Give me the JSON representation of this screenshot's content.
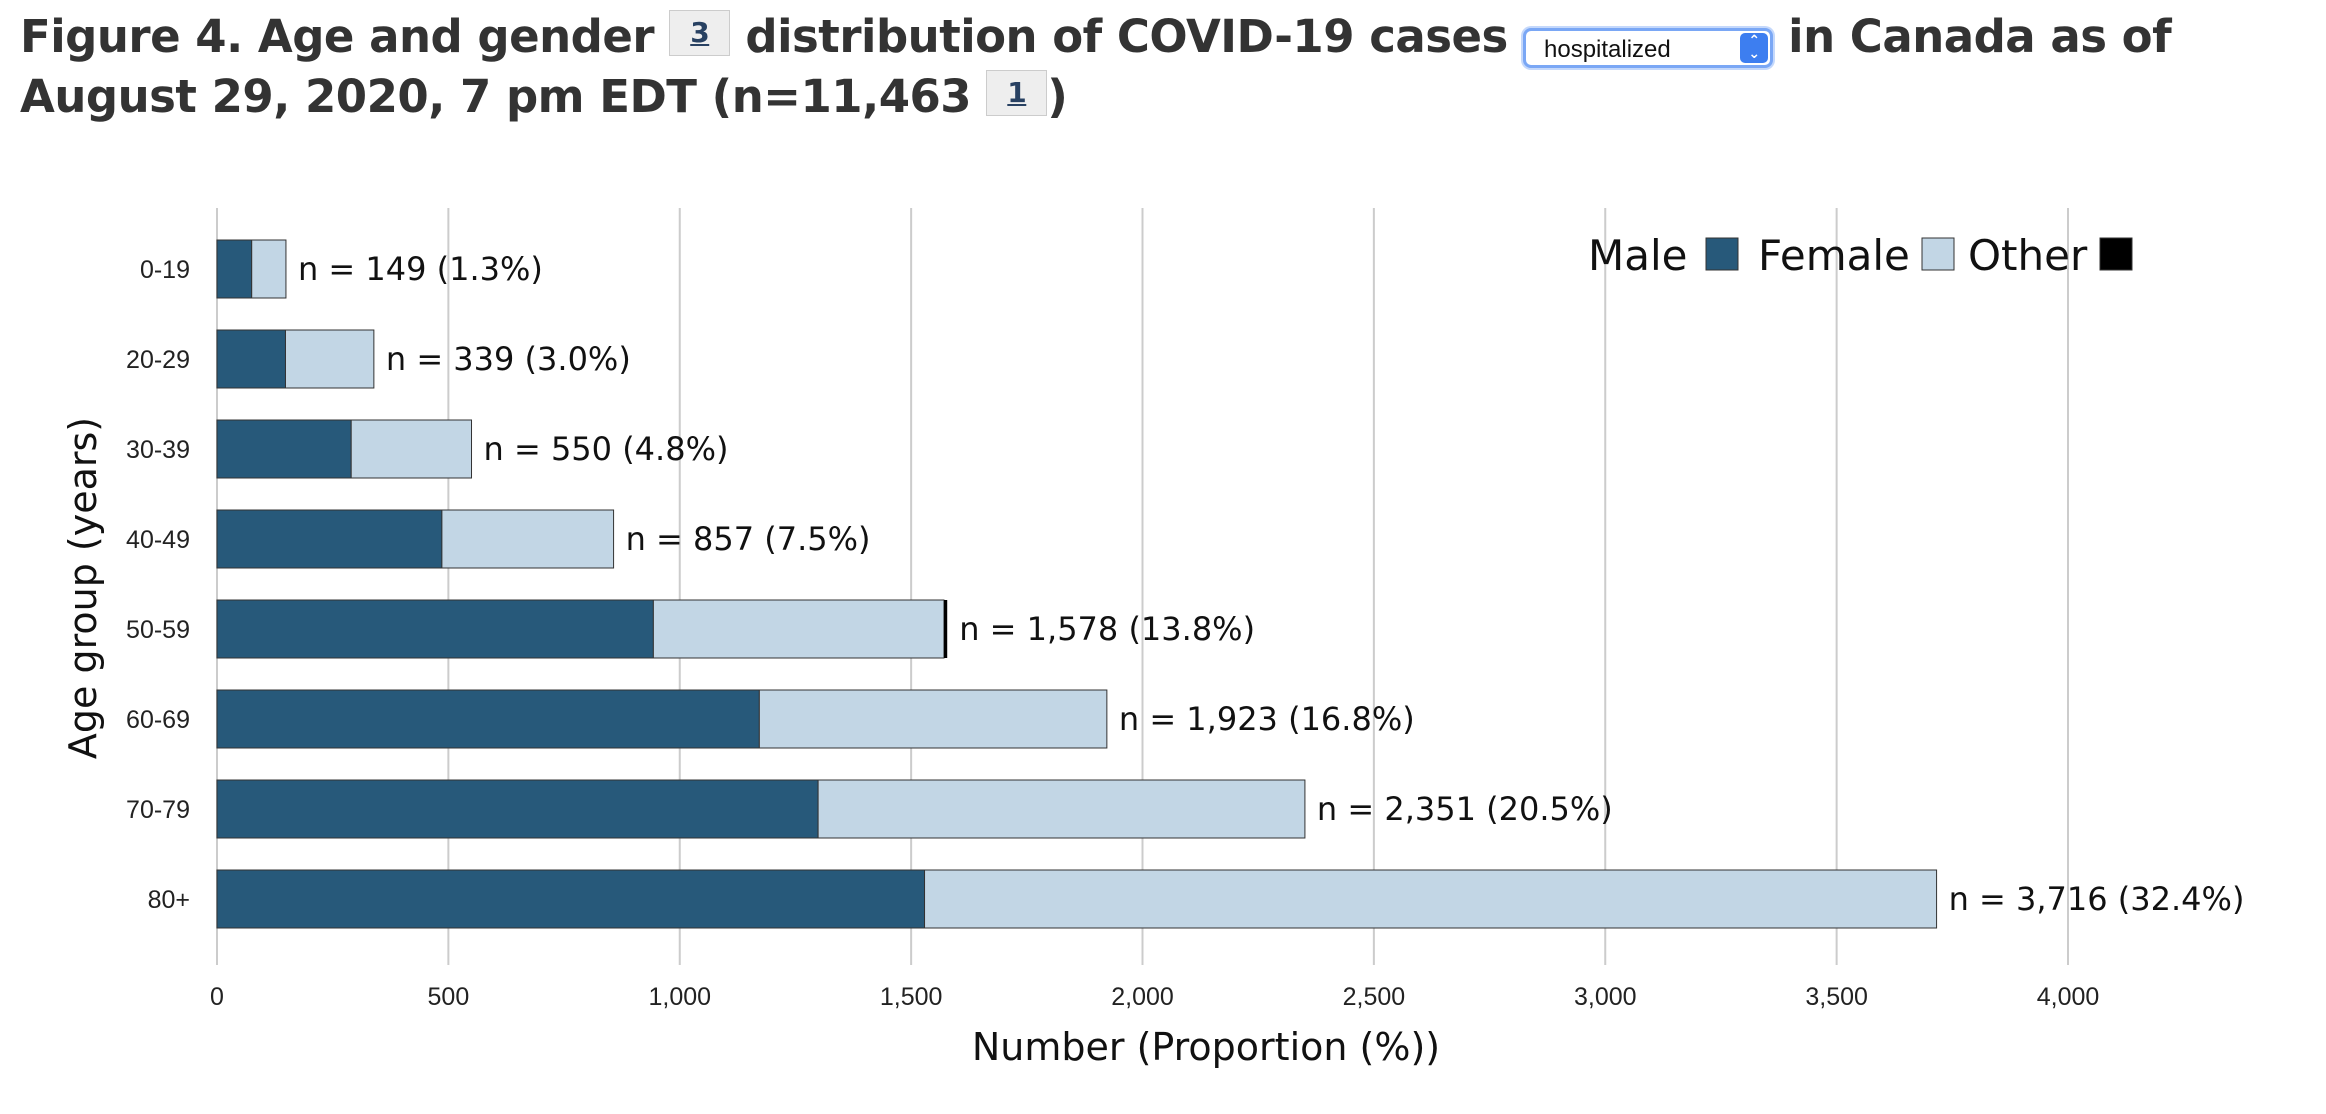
{
  "title": {
    "part1": "Figure 4. Age and gender",
    "footnote1": "3",
    "part2": "distribution of COVID-19 cases",
    "part3": "in Canada as of August 29, 2020, 7 pm EDT (n=11,463",
    "footnote2": "1",
    "part4": ")"
  },
  "case_type_select": {
    "selected": "hospitalized"
  },
  "colors": {
    "male": "#27597a",
    "female": "#c2d6e5",
    "other": "#000000",
    "grid": "#cccccc"
  },
  "chart_data": {
    "type": "bar",
    "orientation": "horizontal",
    "stacked": true,
    "categories": [
      "0-19",
      "20-29",
      "30-39",
      "40-49",
      "50-59",
      "60-69",
      "70-79",
      "80+"
    ],
    "series": [
      {
        "name": "Male",
        "values": [
          75,
          148,
          290,
          486,
          943,
          1172,
          1299,
          1529
        ]
      },
      {
        "name": "Female",
        "values": [
          74,
          191,
          260,
          371,
          628,
          751,
          1052,
          2187
        ]
      },
      {
        "name": "Other",
        "values": [
          0,
          0,
          0,
          0,
          7,
          0,
          0,
          0
        ]
      }
    ],
    "data_labels": [
      "n = 149 (1.3%)",
      "n = 339 (3.0%)",
      "n = 550 (4.8%)",
      "n = 857 (7.5%)",
      "n = 1,578 (13.8%)",
      "n = 1,923 (16.8%)",
      "n = 2,351 (20.5%)",
      "n = 3,716 (32.4%)"
    ],
    "xlabel": "Number (Proportion (%))",
    "ylabel": "Age group (years)",
    "xlim": [
      0,
      4000
    ],
    "xticks": [
      0,
      500,
      1000,
      1500,
      2000,
      2500,
      3000,
      3500,
      4000
    ],
    "xtick_labels": [
      "0",
      "500",
      "1,000",
      "1,500",
      "2,000",
      "2,500",
      "3,000",
      "3,500",
      "4,000"
    ],
    "grid": "vertical",
    "legend_position": "top-right"
  }
}
